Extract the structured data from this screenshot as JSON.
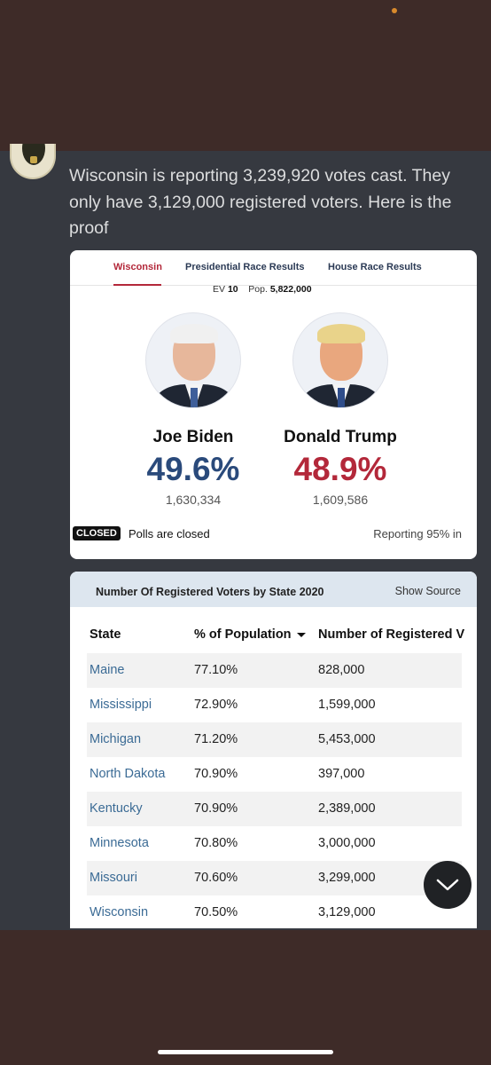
{
  "message": {
    "text": "Wisconsin is reporting 3,239,920 votes cast. They only have 3,129,000 registered voters. Here is the proof"
  },
  "results_card": {
    "tabs": [
      "Wisconsin",
      "Presidential Race Results",
      "House Race Results"
    ],
    "ev_label": "EV",
    "ev_value": "10",
    "pop_label": "Pop.",
    "pop_value": "5,822,000",
    "candidates": [
      {
        "name": "Joe Biden",
        "percent": "49.6%",
        "votes": "1,630,334",
        "color": "#2a4a7b"
      },
      {
        "name": "Donald Trump",
        "percent": "48.9%",
        "votes": "1,609,586",
        "color": "#b3283a"
      }
    ],
    "closed_badge": "CLOSED",
    "closed_text": "Polls are closed",
    "reporting": "Reporting 95% in"
  },
  "voters_table": {
    "title": "Number Of Registered Voters by State 2020",
    "show_source": "Show Source",
    "columns": [
      "State",
      "% of Population",
      "Number of Registered V"
    ],
    "rows": [
      {
        "state": "Maine",
        "pct": "77.10%",
        "num": "828,000"
      },
      {
        "state": "Mississippi",
        "pct": "72.90%",
        "num": "1,599,000"
      },
      {
        "state": "Michigan",
        "pct": "71.20%",
        "num": "5,453,000"
      },
      {
        "state": "North Dakota",
        "pct": "70.90%",
        "num": "397,000"
      },
      {
        "state": "Kentucky",
        "pct": "70.90%",
        "num": "2,389,000"
      },
      {
        "state": "Minnesota",
        "pct": "70.80%",
        "num": "3,000,000"
      },
      {
        "state": "Missouri",
        "pct": "70.60%",
        "num": "3,299,000"
      },
      {
        "state": "Wisconsin",
        "pct": "70.50%",
        "num": "3,129,000"
      }
    ]
  },
  "icons": {
    "scroll": "chevron-down-icon",
    "status": "notification-dot-icon"
  }
}
